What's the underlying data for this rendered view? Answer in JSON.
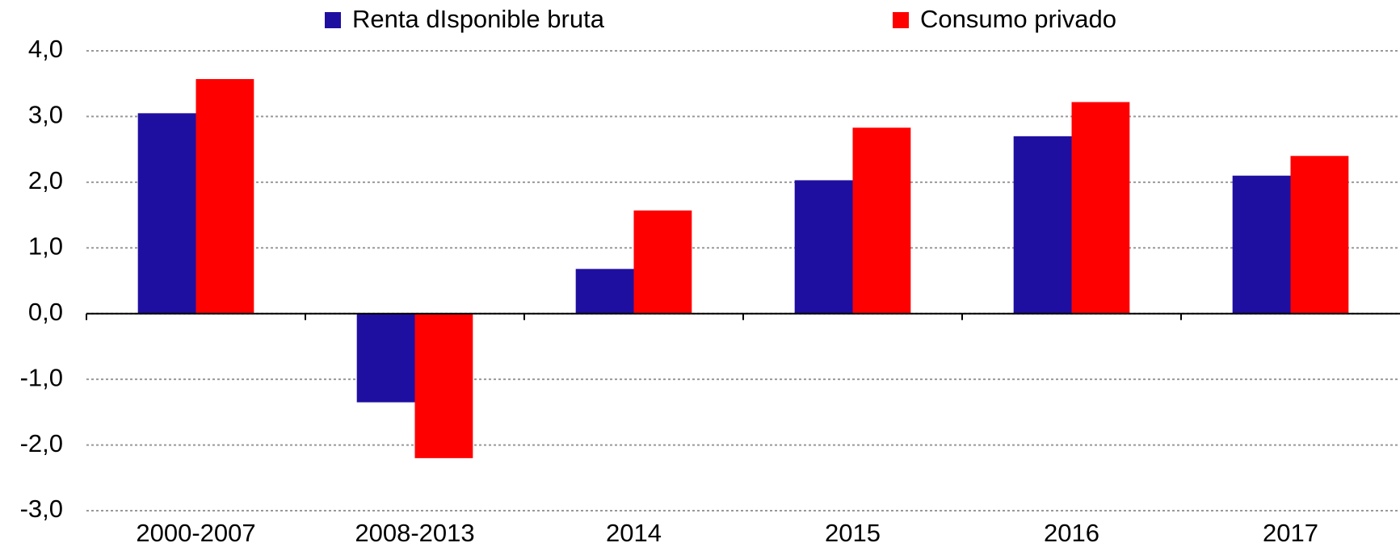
{
  "chart_data": {
    "type": "bar",
    "categories": [
      "2000-2007",
      "2008-2013",
      "2014",
      "2015",
      "2016",
      "2017"
    ],
    "series": [
      {
        "name": "Renta dIsponible bruta",
        "color": "#1f0fa0",
        "values": [
          3.05,
          -1.35,
          0.68,
          2.03,
          2.7,
          2.1
        ]
      },
      {
        "name": "Consumo privado",
        "color": "#ff0000",
        "values": [
          3.57,
          -2.2,
          1.57,
          2.83,
          3.22,
          2.4
        ]
      }
    ],
    "ylim": [
      -3,
      4
    ],
    "yticks": [
      {
        "value": -3,
        "label": "-3,0"
      },
      {
        "value": -2,
        "label": "-2,0"
      },
      {
        "value": -1,
        "label": "-1,0"
      },
      {
        "value": 0,
        "label": "0,0"
      },
      {
        "value": 1,
        "label": "1,0"
      },
      {
        "value": 2,
        "label": "2,0"
      },
      {
        "value": 3,
        "label": "3,0"
      },
      {
        "value": 4,
        "label": "4,0"
      }
    ],
    "grid": true
  }
}
